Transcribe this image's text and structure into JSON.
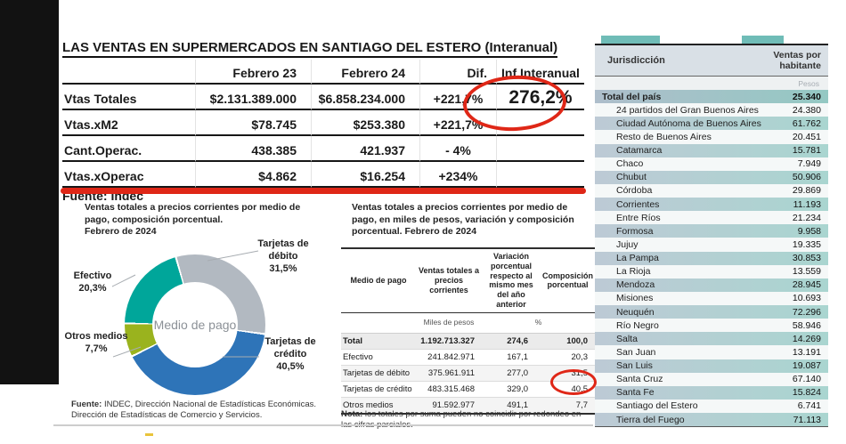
{
  "top_table": {
    "title": "LAS VENTAS EN SUPERMERCADOS EN SANTIAGO DEL ESTERO (Interanual)",
    "columns": [
      "Febrero 23",
      "Febrero 24",
      "Dif.",
      "Inf.Interanual"
    ],
    "rows": [
      {
        "label": "Vtas Totales",
        "feb23": "$2.131.389.000",
        "feb24": "$6.858.234.000",
        "dif": "+221,7%",
        "inf": "276,2%"
      },
      {
        "label": "Vtas.xM2",
        "feb23": "$78.745",
        "feb24": "$253.380",
        "dif": "+221,7%",
        "inf": ""
      },
      {
        "label": "Cant.Operac.",
        "feb23": "438.385",
        "feb24": "421.937",
        "dif": "- 4%",
        "inf": ""
      },
      {
        "label": "Vtas.xOperac",
        "feb23": "$4.862",
        "feb24": "$16.254",
        "dif": "+234%",
        "inf": ""
      }
    ],
    "source_row": "Fuente: Indec"
  },
  "donut": {
    "title": "Ventas totales a precios corrientes por medio de pago, composición porcentual.",
    "subtitle": "Febrero de 2024",
    "center_label": "Medio de pago",
    "source_label": "Fuente:",
    "source_text": "INDEC, Dirección Nacional de Estadísticas Económicas. Dirección de Estadísticas de Comercio y Servicios.",
    "segments": [
      {
        "name": "Tarjetas de débito",
        "pct": "31,5%",
        "value": 31.5,
        "color": "#b2b9c1"
      },
      {
        "name": "Tarjetas de crédito",
        "pct": "40,5%",
        "value": 40.5,
        "color": "#2e74b8"
      },
      {
        "name": "Otros medios",
        "pct": "7,7%",
        "value": 7.7,
        "color": "#9ab31e"
      },
      {
        "name": "Efectivo",
        "pct": "20,3%",
        "value": 20.3,
        "color": "#00a69a"
      }
    ]
  },
  "chart_data": {
    "type": "pie",
    "title": "Medio de pago — Ventas totales a precios corrientes por medio de pago, composición porcentual. Febrero de 2024",
    "categories": [
      "Tarjetas de débito",
      "Tarjetas de crédito",
      "Otros medios",
      "Efectivo"
    ],
    "values": [
      31.5,
      40.5,
      7.7,
      20.3
    ],
    "legend_position": "callout-labels",
    "center_label": "Medio de pago"
  },
  "mid_table": {
    "title": "Ventas totales a precios corrientes por medio de pago, en miles de pesos, variación y composición porcentual. Febrero de 2024",
    "columns": [
      "Medio de pago",
      "Ventas totales a precios corrientes",
      "Variación porcentual respecto al mismo mes del año anterior",
      "Composición porcentual"
    ],
    "unit_miles": "Miles de pesos",
    "unit_pct": "%",
    "rows": [
      {
        "name": "Total",
        "ventas": "1.192.713.327",
        "variacion": "274,6",
        "composicion": "100,0"
      },
      {
        "name": "Efectivo",
        "ventas": "241.842.971",
        "variacion": "167,1",
        "composicion": "20,3"
      },
      {
        "name": "Tarjetas de débito",
        "ventas": "375.961.911",
        "variacion": "277,0",
        "composicion": "31,5"
      },
      {
        "name": "Tarjetas de crédito",
        "ventas": "483.315.468",
        "variacion": "329,0",
        "composicion": "40,5"
      },
      {
        "name": "Otros medios",
        "ventas": "91.592.977",
        "variacion": "491,1",
        "composicion": "7,7"
      }
    ],
    "note_label": "Nota:",
    "note_text": "los totales por suma pueden no coincidir por redondeo en las cifras parciales."
  },
  "right_table": {
    "col_jurisdiccion": "Jurisdicción",
    "col_ventas": "Ventas por habitante",
    "unit": "Pesos",
    "total_row": {
      "name": "Total del país",
      "value": "25.340"
    },
    "rows": [
      {
        "name": "24 partidos del Gran Buenos Aires",
        "value": "24.380"
      },
      {
        "name": "Ciudad Autónoma de Buenos Aires",
        "value": "61.762"
      },
      {
        "name": "Resto de Buenos Aires",
        "value": "20.451"
      },
      {
        "name": "Catamarca",
        "value": "15.781"
      },
      {
        "name": "Chaco",
        "value": "7.949"
      },
      {
        "name": "Chubut",
        "value": "50.906"
      },
      {
        "name": "Córdoba",
        "value": "29.869"
      },
      {
        "name": "Corrientes",
        "value": "11.193"
      },
      {
        "name": "Entre Ríos",
        "value": "21.234"
      },
      {
        "name": "Formosa",
        "value": "9.958"
      },
      {
        "name": "Jujuy",
        "value": "19.335"
      },
      {
        "name": "La Pampa",
        "value": "30.853"
      },
      {
        "name": "La Rioja",
        "value": "13.559"
      },
      {
        "name": "Mendoza",
        "value": "28.945"
      },
      {
        "name": "Misiones",
        "value": "10.693"
      },
      {
        "name": "Neuquén",
        "value": "72.296"
      },
      {
        "name": "Río Negro",
        "value": "58.946"
      },
      {
        "name": "Salta",
        "value": "14.269"
      },
      {
        "name": "San Juan",
        "value": "13.191"
      },
      {
        "name": "San Luis",
        "value": "19.087"
      },
      {
        "name": "Santa Cruz",
        "value": "67.140"
      },
      {
        "name": "Santa Fe",
        "value": "15.824"
      },
      {
        "name": "Santiago del Estero",
        "value": "6.741"
      },
      {
        "name": "Tierra del Fuego",
        "value": "71.113"
      }
    ]
  },
  "colors": {
    "accent_red": "#df2717",
    "donut_teal": "#00a69a",
    "donut_blue": "#2e74b8",
    "donut_gray": "#b2b9c1",
    "donut_olive": "#9ab31e",
    "row_teal": "#a9d5d0"
  }
}
